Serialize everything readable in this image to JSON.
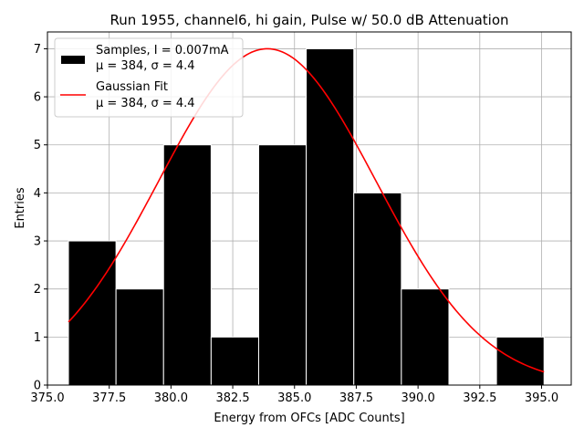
{
  "chart_data": {
    "type": "bar",
    "title": "Run 1955, channel6, hi gain, Pulse w/ 50.0 dB Attenuation",
    "xlabel": "Energy from OFCs [ADC Counts]",
    "ylabel": "Entries",
    "xlim": [
      375.0,
      396.2
    ],
    "ylim": [
      0,
      7.35
    ],
    "xticks": [
      375.0,
      377.5,
      380.0,
      382.5,
      385.0,
      387.5,
      390.0,
      392.5,
      395.0
    ],
    "xtick_labels": [
      "375.0",
      "377.5",
      "380.0",
      "382.5",
      "385.0",
      "387.5",
      "390.0",
      "392.5",
      "395.0"
    ],
    "yticks": [
      0,
      1,
      2,
      3,
      4,
      5,
      6,
      7
    ],
    "ytick_labels": [
      "0",
      "1",
      "2",
      "3",
      "4",
      "5",
      "6",
      "7"
    ],
    "grid": true,
    "legend_position": "top-left",
    "histogram": {
      "name": "Samples, I = 0.007mA",
      "stats": "μ = 384, σ = 4.4",
      "color": "#000000",
      "bin_edges": [
        375.85,
        377.775,
        379.7,
        381.625,
        383.55,
        385.475,
        387.4,
        389.325,
        391.25,
        393.175,
        395.1
      ],
      "counts": [
        3,
        2,
        5,
        1,
        5,
        7,
        4,
        2,
        0,
        1
      ]
    },
    "fit": {
      "name": "Gaussian Fit",
      "stats": "μ = 384, σ = 4.4",
      "color": "#ff0000",
      "mu": 383.9,
      "sigma": 4.4,
      "amplitude": 7.0,
      "x_range": [
        375.85,
        395.1
      ]
    }
  }
}
